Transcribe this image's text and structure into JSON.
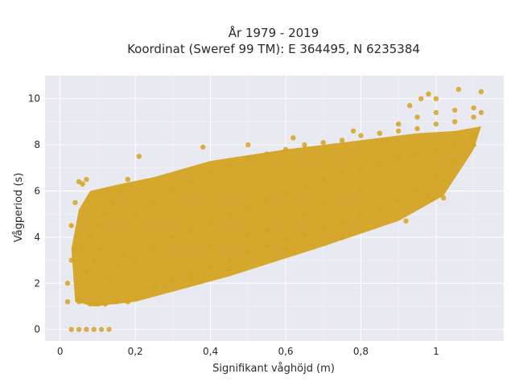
{
  "chart_data": {
    "type": "scatter",
    "title_lines": [
      "År 1979 - 2019",
      "Koordinat (Sweref 99 TM): E 364495, N 6235384"
    ],
    "xlabel": "Signifikant våghöjd (m)",
    "ylabel": "Vågperiod (s)",
    "xlim": [
      -0.04,
      1.18
    ],
    "ylim": [
      -0.5,
      11.0
    ],
    "x_ticks": [
      {
        "value": 0,
        "label": "0"
      },
      {
        "value": 0.2,
        "label": "0,2"
      },
      {
        "value": 0.4,
        "label": "0,4"
      },
      {
        "value": 0.6,
        "label": "0,6"
      },
      {
        "value": 0.8,
        "label": "0,8"
      },
      {
        "value": 1.0,
        "label": "1"
      }
    ],
    "y_ticks": [
      {
        "value": 0,
        "label": "0"
      },
      {
        "value": 2,
        "label": "2"
      },
      {
        "value": 4,
        "label": "4"
      },
      {
        "value": 6,
        "label": "6"
      },
      {
        "value": 8,
        "label": "8"
      },
      {
        "value": 10,
        "label": "10"
      }
    ],
    "grid": true,
    "colors": {
      "points": "#d4a321",
      "plot_bg": "#e9e9f1",
      "grid": "#ffffff"
    },
    "series": [
      {
        "points": [
          [
            0.03,
            0.0
          ],
          [
            0.05,
            0.0
          ],
          [
            0.07,
            0.0
          ],
          [
            0.09,
            0.0
          ],
          [
            0.11,
            0.0
          ],
          [
            0.13,
            0.0
          ],
          [
            0.02,
            2.0
          ],
          [
            0.02,
            1.2
          ],
          [
            0.03,
            3.0
          ],
          [
            0.03,
            4.5
          ],
          [
            0.04,
            5.5
          ],
          [
            0.05,
            6.4
          ],
          [
            0.06,
            6.3
          ],
          [
            0.07,
            6.5
          ],
          [
            0.05,
            1.2
          ],
          [
            0.08,
            1.1
          ],
          [
            0.1,
            1.1
          ],
          [
            0.12,
            1.1
          ],
          [
            0.15,
            1.2
          ],
          [
            0.18,
            1.2
          ],
          [
            0.06,
            3.5
          ],
          [
            0.08,
            4.0
          ],
          [
            0.1,
            4.5
          ],
          [
            0.12,
            5.0
          ],
          [
            0.14,
            5.5
          ],
          [
            0.16,
            6.0
          ],
          [
            0.18,
            6.5
          ],
          [
            0.07,
            2.5
          ],
          [
            0.09,
            3.0
          ],
          [
            0.11,
            3.5
          ],
          [
            0.13,
            2.2
          ],
          [
            0.15,
            2.8
          ],
          [
            0.17,
            3.2
          ],
          [
            0.2,
            1.4
          ],
          [
            0.25,
            1.8
          ],
          [
            0.3,
            2.1
          ],
          [
            0.35,
            2.4
          ],
          [
            0.4,
            2.7
          ],
          [
            0.45,
            3.0
          ],
          [
            0.5,
            3.3
          ],
          [
            0.55,
            3.6
          ],
          [
            0.6,
            3.9
          ],
          [
            0.65,
            4.1
          ],
          [
            0.7,
            4.4
          ],
          [
            0.75,
            4.7
          ],
          [
            0.8,
            5.0
          ],
          [
            0.85,
            5.3
          ],
          [
            0.9,
            5.6
          ],
          [
            0.95,
            6.0
          ],
          [
            1.0,
            6.6
          ],
          [
            1.05,
            7.3
          ],
          [
            1.1,
            8.0
          ],
          [
            0.2,
            3.0
          ],
          [
            0.25,
            3.5
          ],
          [
            0.3,
            4.0
          ],
          [
            0.35,
            4.3
          ],
          [
            0.4,
            4.6
          ],
          [
            0.45,
            5.0
          ],
          [
            0.5,
            5.3
          ],
          [
            0.55,
            5.6
          ],
          [
            0.6,
            5.9
          ],
          [
            0.65,
            6.2
          ],
          [
            0.7,
            6.5
          ],
          [
            0.75,
            6.8
          ],
          [
            0.8,
            7.0
          ],
          [
            0.85,
            7.2
          ],
          [
            0.9,
            7.4
          ],
          [
            0.95,
            7.6
          ],
          [
            1.0,
            7.8
          ],
          [
            1.05,
            8.0
          ],
          [
            1.1,
            8.4
          ],
          [
            0.2,
            5.0
          ],
          [
            0.25,
            5.5
          ],
          [
            0.3,
            6.0
          ],
          [
            0.35,
            6.4
          ],
          [
            0.4,
            6.8
          ],
          [
            0.45,
            7.1
          ],
          [
            0.5,
            7.4
          ],
          [
            0.55,
            7.6
          ],
          [
            0.6,
            7.8
          ],
          [
            0.65,
            8.0
          ],
          [
            0.7,
            8.1
          ],
          [
            0.75,
            8.2
          ],
          [
            0.8,
            8.4
          ],
          [
            0.85,
            8.5
          ],
          [
            0.9,
            8.6
          ],
          [
            0.95,
            8.7
          ],
          [
            1.0,
            8.9
          ],
          [
            1.05,
            9.0
          ],
          [
            1.1,
            9.2
          ],
          [
            0.21,
            7.5
          ],
          [
            0.38,
            7.9
          ],
          [
            0.5,
            8.0
          ],
          [
            0.62,
            8.3
          ],
          [
            0.78,
            8.6
          ],
          [
            0.9,
            8.9
          ],
          [
            0.95,
            9.2
          ],
          [
            1.0,
            9.4
          ],
          [
            1.05,
            9.5
          ],
          [
            1.1,
            9.6
          ],
          [
            1.12,
            9.4
          ],
          [
            0.93,
            9.7
          ],
          [
            0.96,
            10.0
          ],
          [
            0.98,
            10.2
          ],
          [
            1.0,
            10.0
          ],
          [
            1.06,
            10.4
          ],
          [
            1.12,
            10.3
          ],
          [
            0.4,
            3.6
          ],
          [
            0.55,
            4.3
          ],
          [
            0.7,
            5.5
          ],
          [
            0.85,
            6.2
          ],
          [
            0.98,
            5.8
          ],
          [
            1.02,
            5.7
          ],
          [
            0.92,
            4.7
          ],
          [
            0.75,
            4.0
          ],
          [
            0.6,
            3.5
          ],
          [
            0.45,
            2.6
          ],
          [
            0.35,
            2.2
          ],
          [
            0.28,
            1.9
          ],
          [
            0.5,
            4.1
          ],
          [
            0.65,
            5.0
          ],
          [
            0.8,
            6.1
          ]
        ]
      }
    ]
  }
}
